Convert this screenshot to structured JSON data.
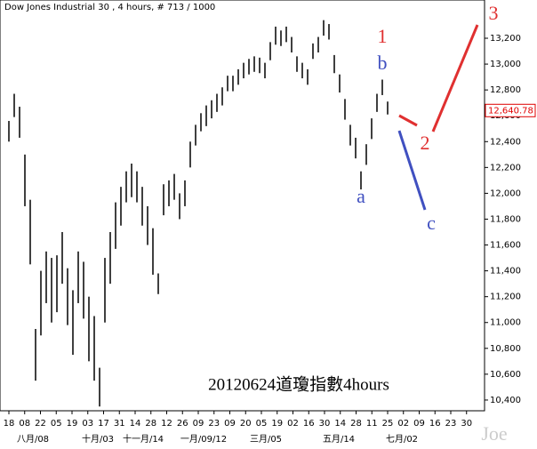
{
  "chart_data": {
    "type": "ohlc",
    "title": "Dow Jones Industrial 30 , 4 hours, # 713 / 1000",
    "caption": "20120624道瓊指數4hours",
    "watermark": "Joe",
    "color": "#000000",
    "ylim": [
      10317,
      13496
    ],
    "yticks": [
      {
        "value": 10400,
        "label": "10,400"
      },
      {
        "value": 10600,
        "label": "10,600"
      },
      {
        "value": 10800,
        "label": "10,800"
      },
      {
        "value": 11000,
        "label": "11,000"
      },
      {
        "value": 11200,
        "label": "11,200"
      },
      {
        "value": 11400,
        "label": "11,400"
      },
      {
        "value": 11600,
        "label": "11,600"
      },
      {
        "value": 11800,
        "label": "11,800"
      },
      {
        "value": 12000,
        "label": "12,000"
      },
      {
        "value": 12200,
        "label": "12,200"
      },
      {
        "value": 12400,
        "label": "12,400"
      },
      {
        "value": 12600,
        "label": "12,600"
      },
      {
        "value": 12800,
        "label": "12,800"
      },
      {
        "value": 13000,
        "label": "13,000"
      },
      {
        "value": 13200,
        "label": "13,200"
      }
    ],
    "current_price": {
      "value": 12640.78,
      "label": "12,640.78",
      "color": "#e00000"
    },
    "x_labels": [
      "18",
      "08",
      "22",
      "05",
      "19",
      "03",
      "17",
      "31",
      "14",
      "28",
      "12",
      "26",
      "09",
      "23",
      "09",
      "20",
      "05",
      "19",
      "02",
      "16",
      "30",
      "14",
      "28",
      "11",
      "25",
      "02",
      "09",
      "16",
      "23",
      "30"
    ],
    "month_labels": [
      "八月/08",
      "十月/03",
      "十一月/14",
      "一月/09/12",
      "三月/05",
      "五月/14",
      "七月/02"
    ],
    "high": [
      12560,
      12770,
      12670,
      12300,
      11950,
      10950,
      11400,
      11550,
      11500,
      11520,
      11700,
      11420,
      11250,
      11550,
      11470,
      11200,
      11050,
      10650,
      11500,
      11700,
      11930,
      12050,
      12170,
      12230,
      12170,
      12050,
      11900,
      11730,
      11380,
      12070,
      12100,
      12150,
      12000,
      12100,
      12400,
      12530,
      12620,
      12680,
      12720,
      12770,
      12820,
      12910,
      12910,
      12960,
      13010,
      13040,
      13060,
      13050,
      13010,
      13170,
      13290,
      13260,
      13290,
      13210,
      13060,
      13010,
      12960,
      13160,
      13210,
      13340,
      13310,
      13070,
      12920,
      12730,
      12530,
      12430,
      12170,
      12380,
      12580,
      12770,
      12880,
      12710
    ],
    "low": [
      12400,
      12590,
      12430,
      11900,
      11450,
      10550,
      10900,
      11150,
      11000,
      11080,
      11300,
      10980,
      10750,
      11150,
      11030,
      10700,
      10550,
      10350,
      11000,
      11300,
      11570,
      11750,
      11930,
      11970,
      11930,
      11750,
      11600,
      11370,
      11220,
      11830,
      11900,
      11950,
      11800,
      11900,
      12200,
      12370,
      12480,
      12520,
      12580,
      12630,
      12680,
      12790,
      12790,
      12840,
      12890,
      12920,
      12940,
      12930,
      12890,
      13030,
      13150,
      13140,
      13170,
      13090,
      12940,
      12890,
      12840,
      13040,
      13090,
      13220,
      13190,
      12930,
      12780,
      12570,
      12370,
      12270,
      12030,
      12220,
      12420,
      12630,
      12760,
      12610
    ],
    "annotations": [
      {
        "text": "1",
        "color": "#e03030"
      },
      {
        "text": "b",
        "color": "#4050c0"
      },
      {
        "text": "a",
        "color": "#4050c0"
      },
      {
        "text": "2",
        "color": "#e03030"
      },
      {
        "text": "3",
        "color": "#e03030"
      },
      {
        "text": "c",
        "color": "#4050c0"
      }
    ]
  }
}
